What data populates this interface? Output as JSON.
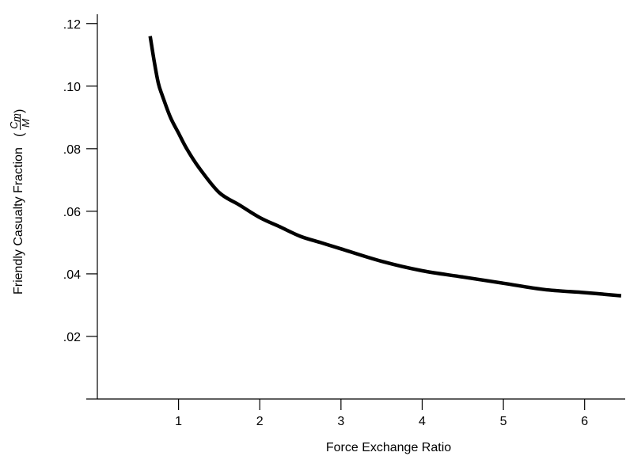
{
  "chart_data": {
    "type": "line",
    "title": "",
    "xlabel": "Force Exchange Ratio",
    "ylabel": {
      "prefix": "Friendly Casualty Fraction",
      "open_paren": "(",
      "numerator": "C",
      "numerator_sub": "m",
      "denominator": "M",
      "close_paren": ")"
    },
    "xlim": [
      0,
      6.5
    ],
    "ylim": [
      0,
      0.125
    ],
    "xticks": [
      1,
      2,
      3,
      4,
      5,
      6
    ],
    "xtick_labels": [
      "1",
      "2",
      "3",
      "4",
      "5",
      "6"
    ],
    "yticks": [
      0.02,
      0.04,
      0.06,
      0.08,
      0.1,
      0.12
    ],
    "ytick_labels": [
      ".02",
      ".04",
      ".06",
      ".08",
      ".10",
      ".12"
    ],
    "grid": false,
    "legend": "none",
    "series": [
      {
        "color": "#000000",
        "x": [
          0.65,
          0.7,
          0.75,
          0.8,
          0.9,
          1.0,
          1.1,
          1.25,
          1.5,
          1.75,
          2.0,
          2.25,
          2.5,
          2.75,
          3.0,
          3.5,
          4.0,
          4.5,
          5.0,
          5.5,
          6.0,
          6.45
        ],
        "y": [
          0.116,
          0.108,
          0.101,
          0.097,
          0.09,
          0.085,
          0.08,
          0.074,
          0.066,
          0.062,
          0.058,
          0.055,
          0.052,
          0.05,
          0.048,
          0.044,
          0.041,
          0.039,
          0.037,
          0.035,
          0.034,
          0.033
        ]
      }
    ]
  }
}
